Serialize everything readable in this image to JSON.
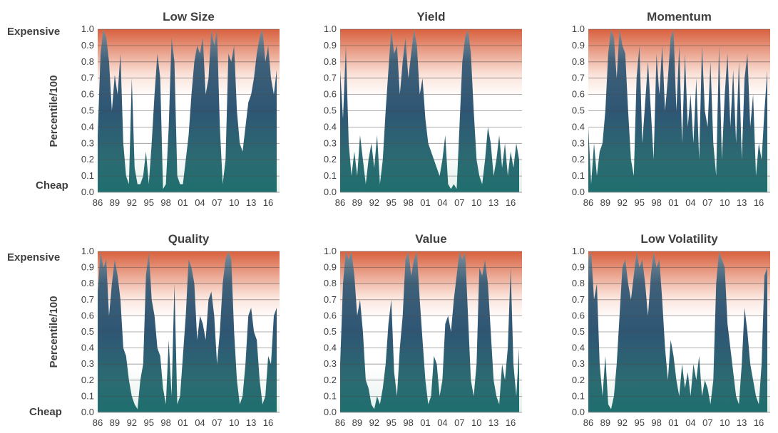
{
  "labels": {
    "expensive": "Expensive",
    "cheap": "Cheap",
    "ylabel": "Percentile/100"
  },
  "colors": {
    "top_band": "#d8613f",
    "low_band": "#f2f7f5",
    "fill_top": "#3a5a7a",
    "fill_mid": "#2f5a75",
    "fill_bottom": "#1f6e6e",
    "grid": "#555555",
    "text": "#404040"
  },
  "axes": {
    "y_ticks": [
      "0.0",
      "0.1",
      "0.2",
      "0.3",
      "0.4",
      "0.5",
      "0.6",
      "0.7",
      "0.8",
      "0.9",
      "1.0"
    ],
    "x_ticks": [
      "86",
      "89",
      "92",
      "95",
      "98",
      "01",
      "04",
      "07",
      "10",
      "13",
      "16"
    ],
    "ylim": [
      0,
      1
    ],
    "xlim": [
      1986,
      2018
    ]
  },
  "chart_data": [
    {
      "type": "area",
      "title": "Low Size",
      "x": [
        1986,
        1986.5,
        1987,
        1987.5,
        1988,
        1988.5,
        1989,
        1989.5,
        1990,
        1990.5,
        1991,
        1991.5,
        1992,
        1992.5,
        1993,
        1993.5,
        1994,
        1994.5,
        1995,
        1995.5,
        1996,
        1996.5,
        1997,
        1997.5,
        1998,
        1998.5,
        1999,
        1999.5,
        2000,
        2000.5,
        2001,
        2001.5,
        2002,
        2002.5,
        2003,
        2003.5,
        2004,
        2004.5,
        2005,
        2005.5,
        2006,
        2006.5,
        2007,
        2007.5,
        2008,
        2008.5,
        2009,
        2009.5,
        2010,
        2010.5,
        2011,
        2011.5,
        2012,
        2012.5,
        2013,
        2013.5,
        2014,
        2014.5,
        2015,
        2015.5,
        2016,
        2016.5,
        2017,
        2017.5
      ],
      "values": [
        0.35,
        0.85,
        1.0,
        0.95,
        0.8,
        0.5,
        0.72,
        0.6,
        0.85,
        0.3,
        0.1,
        0.05,
        0.7,
        0.15,
        0.05,
        0.05,
        0.1,
        0.25,
        0.05,
        0.3,
        0.6,
        0.85,
        0.7,
        0.02,
        0.05,
        0.4,
        0.95,
        0.8,
        0.1,
        0.05,
        0.05,
        0.2,
        0.35,
        0.6,
        0.8,
        0.9,
        0.85,
        0.95,
        0.6,
        0.7,
        1.0,
        0.9,
        1.0,
        0.4,
        0.05,
        0.2,
        0.85,
        0.8,
        0.9,
        0.5,
        0.3,
        0.25,
        0.4,
        0.55,
        0.6,
        0.7,
        0.85,
        0.95,
        1.0,
        0.8,
        0.9,
        0.7,
        0.6,
        0.75
      ],
      "ylim": [
        0,
        1
      ]
    },
    {
      "type": "area",
      "title": "Yield",
      "x": [
        1986,
        1986.5,
        1987,
        1987.5,
        1988,
        1988.5,
        1989,
        1989.5,
        1990,
        1990.5,
        1991,
        1991.5,
        1992,
        1992.5,
        1993,
        1993.5,
        1994,
        1994.5,
        1995,
        1995.5,
        1996,
        1996.5,
        1997,
        1997.5,
        1998,
        1998.5,
        1999,
        1999.5,
        2000,
        2000.5,
        2001,
        2001.5,
        2002,
        2002.5,
        2003,
        2003.5,
        2004,
        2004.5,
        2005,
        2005.5,
        2006,
        2006.5,
        2007,
        2007.5,
        2008,
        2008.5,
        2009,
        2009.5,
        2010,
        2010.5,
        2011,
        2011.5,
        2012,
        2012.5,
        2013,
        2013.5,
        2014,
        2014.5,
        2015,
        2015.5,
        2016,
        2016.5,
        2017,
        2017.5
      ],
      "values": [
        0.75,
        0.45,
        0.9,
        0.3,
        0.1,
        0.25,
        0.1,
        0.35,
        0.2,
        0.05,
        0.2,
        0.3,
        0.15,
        0.35,
        0.05,
        0.2,
        0.5,
        0.75,
        1.0,
        0.85,
        0.9,
        0.6,
        0.8,
        0.95,
        0.7,
        0.85,
        1.0,
        0.9,
        0.6,
        0.7,
        0.45,
        0.3,
        0.25,
        0.2,
        0.15,
        0.1,
        0.2,
        0.35,
        0.05,
        0.02,
        0.05,
        0.02,
        0.4,
        0.8,
        0.95,
        1.0,
        0.85,
        0.5,
        0.2,
        0.1,
        0.05,
        0.2,
        0.4,
        0.3,
        0.1,
        0.2,
        0.35,
        0.15,
        0.3,
        0.1,
        0.25,
        0.15,
        0.3,
        0.2
      ],
      "ylim": [
        0,
        1
      ]
    },
    {
      "type": "area",
      "title": "Momentum",
      "x": [
        1986,
        1986.5,
        1987,
        1987.5,
        1988,
        1988.5,
        1989,
        1989.5,
        1990,
        1990.5,
        1991,
        1991.5,
        1992,
        1992.5,
        1993,
        1993.5,
        1994,
        1994.5,
        1995,
        1995.5,
        1996,
        1996.5,
        1997,
        1997.5,
        1998,
        1998.5,
        1999,
        1999.5,
        2000,
        2000.5,
        2001,
        2001.5,
        2002,
        2002.5,
        2003,
        2003.5,
        2004,
        2004.5,
        2005,
        2005.5,
        2006,
        2006.5,
        2007,
        2007.5,
        2008,
        2008.5,
        2009,
        2009.5,
        2010,
        2010.5,
        2011,
        2011.5,
        2012,
        2012.5,
        2013,
        2013.5,
        2014,
        2014.5,
        2015,
        2015.5,
        2016,
        2016.5,
        2017,
        2017.5
      ],
      "values": [
        0.4,
        0.05,
        0.3,
        0.1,
        0.25,
        0.3,
        0.5,
        0.85,
        1.0,
        0.95,
        0.7,
        1.0,
        0.9,
        0.85,
        0.5,
        0.2,
        0.1,
        0.7,
        0.9,
        0.3,
        0.55,
        0.8,
        0.5,
        0.2,
        0.85,
        0.6,
        0.9,
        0.5,
        0.7,
        0.95,
        1.0,
        0.5,
        0.9,
        0.3,
        0.85,
        0.4,
        0.6,
        0.3,
        0.7,
        0.2,
        0.9,
        0.5,
        0.4,
        0.8,
        0.3,
        0.1,
        0.9,
        0.2,
        0.6,
        0.85,
        0.4,
        0.75,
        0.3,
        0.8,
        0.2,
        0.7,
        0.85,
        0.4,
        0.6,
        0.1,
        0.3,
        0.2,
        0.5,
        0.75
      ],
      "ylim": [
        0,
        1
      ]
    },
    {
      "type": "area",
      "title": "Quality",
      "x": [
        1986,
        1986.5,
        1987,
        1987.5,
        1988,
        1988.5,
        1989,
        1989.5,
        1990,
        1990.5,
        1991,
        1991.5,
        1992,
        1992.5,
        1993,
        1993.5,
        1994,
        1994.5,
        1995,
        1995.5,
        1996,
        1996.5,
        1997,
        1997.5,
        1998,
        1998.5,
        1999,
        1999.5,
        2000,
        2000.5,
        2001,
        2001.5,
        2002,
        2002.5,
        2003,
        2003.5,
        2004,
        2004.5,
        2005,
        2005.5,
        2006,
        2006.5,
        2007,
        2007.5,
        2008,
        2008.5,
        2009,
        2009.5,
        2010,
        2010.5,
        2011,
        2011.5,
        2012,
        2012.5,
        2013,
        2013.5,
        2014,
        2014.5,
        2015,
        2015.5,
        2016,
        2016.5,
        2017,
        2017.5
      ],
      "values": [
        0.75,
        1.0,
        0.9,
        0.95,
        0.6,
        0.8,
        0.95,
        0.85,
        0.7,
        0.4,
        0.35,
        0.2,
        0.1,
        0.05,
        0.02,
        0.2,
        0.3,
        0.85,
        1.0,
        0.7,
        0.6,
        0.4,
        0.35,
        0.15,
        0.05,
        0.45,
        0.1,
        0.8,
        0.05,
        0.1,
        0.35,
        0.6,
        0.95,
        0.9,
        0.8,
        0.45,
        0.6,
        0.55,
        0.45,
        0.7,
        0.75,
        0.6,
        0.3,
        0.5,
        0.8,
        0.95,
        1.0,
        0.95,
        0.5,
        0.2,
        0.05,
        0.1,
        0.3,
        0.6,
        0.65,
        0.5,
        0.45,
        0.2,
        0.05,
        0.1,
        0.35,
        0.3,
        0.6,
        0.65
      ],
      "ylim": [
        0,
        1
      ]
    },
    {
      "type": "area",
      "title": "Value",
      "x": [
        1986,
        1986.5,
        1987,
        1987.5,
        1988,
        1988.5,
        1989,
        1989.5,
        1990,
        1990.5,
        1991,
        1991.5,
        1992,
        1992.5,
        1993,
        1993.5,
        1994,
        1994.5,
        1995,
        1995.5,
        1996,
        1996.5,
        1997,
        1997.5,
        1998,
        1998.5,
        1999,
        1999.5,
        2000,
        2000.5,
        2001,
        2001.5,
        2002,
        2002.5,
        2003,
        2003.5,
        2004,
        2004.5,
        2005,
        2005.5,
        2006,
        2006.5,
        2007,
        2007.5,
        2008,
        2008.5,
        2009,
        2009.5,
        2010,
        2010.5,
        2011,
        2011.5,
        2012,
        2012.5,
        2013,
        2013.5,
        2014,
        2014.5,
        2015,
        2015.5,
        2016,
        2016.5,
        2017,
        2017.5
      ],
      "values": [
        0.3,
        0.8,
        1.0,
        0.95,
        1.0,
        0.85,
        0.6,
        0.7,
        0.5,
        0.2,
        0.15,
        0.05,
        0.02,
        0.1,
        0.05,
        0.15,
        0.3,
        0.55,
        0.7,
        0.25,
        0.1,
        0.4,
        0.6,
        0.95,
        1.0,
        0.85,
        0.95,
        1.0,
        0.7,
        0.45,
        0.2,
        0.05,
        0.1,
        0.35,
        0.3,
        0.1,
        0.2,
        0.55,
        0.6,
        0.5,
        0.7,
        0.85,
        1.0,
        0.95,
        1.0,
        0.6,
        0.2,
        0.1,
        0.3,
        0.9,
        0.85,
        0.95,
        0.8,
        0.5,
        0.2,
        0.1,
        0.05,
        0.3,
        0.2,
        0.4,
        0.9,
        0.3,
        0.1,
        0.4
      ],
      "ylim": [
        0,
        1
      ]
    },
    {
      "type": "area",
      "title": "Low Volatility",
      "x": [
        1986,
        1986.5,
        1987,
        1987.5,
        1988,
        1988.5,
        1989,
        1989.5,
        1990,
        1990.5,
        1991,
        1991.5,
        1992,
        1992.5,
        1993,
        1993.5,
        1994,
        1994.5,
        1995,
        1995.5,
        1996,
        1996.5,
        1997,
        1997.5,
        1998,
        1998.5,
        1999,
        1999.5,
        2000,
        2000.5,
        2001,
        2001.5,
        2002,
        2002.5,
        2003,
        2003.5,
        2004,
        2004.5,
        2005,
        2005.5,
        2006,
        2006.5,
        2007,
        2007.5,
        2008,
        2008.5,
        2009,
        2009.5,
        2010,
        2010.5,
        2011,
        2011.5,
        2012,
        2012.5,
        2013,
        2013.5,
        2014,
        2014.5,
        2015,
        2015.5,
        2016,
        2016.5,
        2017,
        2017.5
      ],
      "values": [
        0.95,
        1.0,
        0.7,
        0.8,
        0.3,
        0.1,
        0.35,
        0.05,
        0.02,
        0.1,
        0.3,
        0.6,
        0.9,
        0.95,
        0.8,
        0.7,
        0.85,
        1.0,
        0.9,
        0.95,
        0.8,
        0.6,
        0.85,
        1.0,
        0.9,
        0.95,
        0.7,
        0.4,
        0.2,
        0.45,
        0.35,
        0.2,
        0.1,
        0.3,
        0.15,
        0.25,
        0.1,
        0.3,
        0.2,
        0.35,
        0.1,
        0.2,
        0.15,
        0.05,
        0.2,
        0.8,
        1.0,
        0.95,
        0.9,
        0.55,
        0.4,
        0.25,
        0.1,
        0.05,
        0.3,
        0.65,
        0.5,
        0.3,
        0.2,
        0.1,
        0.05,
        0.3,
        0.85,
        0.9
      ],
      "ylim": [
        0,
        1
      ]
    }
  ]
}
